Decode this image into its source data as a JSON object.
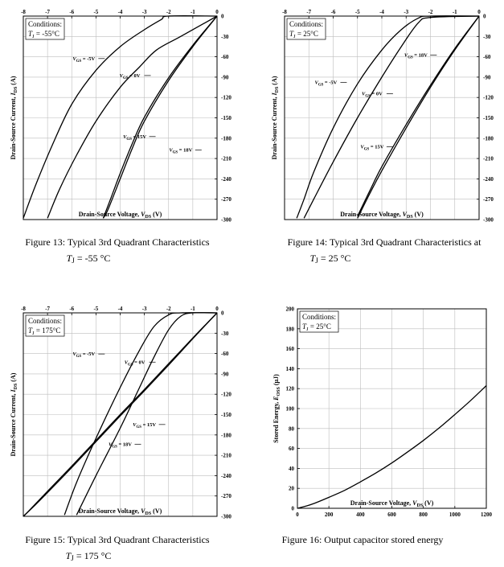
{
  "chart_data": [
    {
      "type": "line",
      "id": "fig13",
      "conditions_title": "Conditions:",
      "conditions_value": "Tj = -55°C",
      "xlabel": "Drain-Source Voltage, VDS (V)",
      "ylabel": "Drain-Source Current, IDS (A)",
      "xlim": [
        -8,
        0
      ],
      "ylim": [
        -300,
        0
      ],
      "x_ticks": [
        "-8",
        "-7",
        "-6",
        "-5",
        "-4",
        "-3",
        "-2",
        "-1",
        "0"
      ],
      "y_ticks": [
        "0",
        "-30",
        "-60",
        "-90",
        "-120",
        "-150",
        "-180",
        "-210",
        "-240",
        "-270",
        "-300"
      ],
      "caption_line1": "Figure 13: Typical 3rd Quadrant Characteristics",
      "caption_line2": "TJ = -55 °C",
      "series": [
        {
          "name": "VGS = -5V",
          "points": [
            [
              0,
              0
            ],
            [
              -2.0,
              0
            ],
            [
              -2.3,
              -5
            ],
            [
              -3.0,
              -20
            ],
            [
              -4.0,
              -45
            ],
            [
              -5.0,
              -80
            ],
            [
              -6.0,
              -130
            ],
            [
              -6.8,
              -190
            ],
            [
              -7.5,
              -250
            ],
            [
              -8.0,
              -298
            ]
          ]
        },
        {
          "name": "VGS = 0V",
          "points": [
            [
              0,
              0
            ],
            [
              -1.5,
              -30
            ],
            [
              -2.5,
              -50
            ],
            [
              -3.2,
              -75
            ],
            [
              -4.0,
              -105
            ],
            [
              -5.0,
              -155
            ],
            [
              -5.8,
              -205
            ],
            [
              -6.5,
              -255
            ],
            [
              -7.0,
              -298
            ]
          ]
        },
        {
          "name": "VGS = 15V",
          "points": [
            [
              0,
              0
            ],
            [
              -1.0,
              -45
            ],
            [
              -2.0,
              -95
            ],
            [
              -3.0,
              -155
            ],
            [
              -3.5,
              -195
            ],
            [
              -4.0,
              -240
            ],
            [
              -4.5,
              -285
            ],
            [
              -4.7,
              -298
            ]
          ]
        },
        {
          "name": "VGS = 18V",
          "points": [
            [
              0,
              0
            ],
            [
              -1.0,
              -43
            ],
            [
              -2.0,
              -91
            ],
            [
              -3.0,
              -149
            ],
            [
              -3.5,
              -188
            ],
            [
              -4.0,
              -232
            ],
            [
              -4.4,
              -270
            ],
            [
              -4.7,
              -298
            ]
          ]
        }
      ],
      "labels": [
        {
          "text": "VGS = -5V",
          "x": -5.5,
          "y": -65
        },
        {
          "text": "VGS = 0V",
          "x": -3.6,
          "y": -90
        },
        {
          "text": "VGS = 15V",
          "x": -3.4,
          "y": -180
        },
        {
          "text": "VGS = 18V",
          "x": -1.5,
          "y": -200
        }
      ]
    },
    {
      "type": "line",
      "id": "fig14",
      "conditions_title": "Conditions:",
      "conditions_value": "Tj = 25°C",
      "xlabel": "Drain-Source Voltage, VDS (V)",
      "ylabel": "Drain-Source Current, IDS (A)",
      "xlim": [
        -8,
        0
      ],
      "ylim": [
        -300,
        0
      ],
      "x_ticks": [
        "-8",
        "-7",
        "-6",
        "-5",
        "-4",
        "-3",
        "-2",
        "-1",
        "0"
      ],
      "y_ticks": [
        "0",
        "-30",
        "-60",
        "-90",
        "-120",
        "-150",
        "-180",
        "-210",
        "-240",
        "-270",
        "-300"
      ],
      "caption_line1": "Figure 14: Typical 3rd Quadrant Characteristics at",
      "caption_line2": "TJ = 25 °C",
      "series": [
        {
          "name": "VGS = -5V",
          "points": [
            [
              0,
              0
            ],
            [
              -2.0,
              0
            ],
            [
              -2.5,
              -3
            ],
            [
              -3.2,
              -20
            ],
            [
              -4.0,
              -50
            ],
            [
              -5.0,
              -100
            ],
            [
              -6.0,
              -165
            ],
            [
              -6.8,
              -230
            ],
            [
              -7.2,
              -270
            ],
            [
              -7.5,
              -298
            ]
          ]
        },
        {
          "name": "VGS = 0V",
          "points": [
            [
              0,
              0
            ],
            [
              -2.0,
              -2
            ],
            [
              -2.5,
              -10
            ],
            [
              -3.2,
              -45
            ],
            [
              -4.0,
              -90
            ],
            [
              -5.0,
              -150
            ],
            [
              -6.0,
              -215
            ],
            [
              -6.8,
              -270
            ],
            [
              -7.2,
              -298
            ]
          ]
        },
        {
          "name": "VGS = 15V",
          "points": [
            [
              0,
              0
            ],
            [
              -1.0,
              -50
            ],
            [
              -2.0,
              -105
            ],
            [
              -3.0,
              -165
            ],
            [
              -4.0,
              -228
            ],
            [
              -4.5,
              -262
            ],
            [
              -5.0,
              -298
            ]
          ]
        },
        {
          "name": "VGS = 18V",
          "points": [
            [
              0,
              0
            ],
            [
              -1.0,
              -48
            ],
            [
              -2.0,
              -102
            ],
            [
              -3.0,
              -160
            ],
            [
              -4.0,
              -222
            ],
            [
              -4.5,
              -258
            ],
            [
              -5.0,
              -295
            ]
          ]
        }
      ],
      "labels": [
        {
          "text": "VGS = 18V",
          "x": -2.6,
          "y": -60
        },
        {
          "text": "VGS = -5V",
          "x": -6.3,
          "y": -100
        },
        {
          "text": "VGS = 0V",
          "x": -4.4,
          "y": -117
        },
        {
          "text": "VGS = 15V",
          "x": -4.4,
          "y": -195
        }
      ]
    },
    {
      "type": "line",
      "id": "fig15",
      "conditions_title": "Conditions:",
      "conditions_value": "Tj = 175°C",
      "xlabel": "Drain-Source Voltage, VDS (V)",
      "ylabel": "Drain-Source Current, IDS (A)",
      "xlim": [
        -8,
        0
      ],
      "ylim": [
        -300,
        0
      ],
      "x_ticks": [
        "-8",
        "-7",
        "-6",
        "-5",
        "-4",
        "-3",
        "-2",
        "-1",
        "0"
      ],
      "y_ticks": [
        "0",
        "-30",
        "-60",
        "-90",
        "-120",
        "-150",
        "-180",
        "-210",
        "-240",
        "-270",
        "-300"
      ],
      "caption_line1": "Figure 15: Typical 3rd Quadrant Characteristics",
      "caption_line2": "TJ = 175 °C",
      "series": [
        {
          "name": "VGS = -5V",
          "points": [
            [
              0,
              0
            ],
            [
              -1.5,
              0
            ],
            [
              -2.0,
              -3
            ],
            [
              -2.6,
              -20
            ],
            [
              -3.2,
              -55
            ],
            [
              -4.0,
              -110
            ],
            [
              -5.0,
              -185
            ],
            [
              -5.8,
              -250
            ],
            [
              -6.3,
              -298
            ]
          ]
        },
        {
          "name": "VGS = 0V",
          "points": [
            [
              0,
              0
            ],
            [
              -1.0,
              0
            ],
            [
              -1.5,
              -5
            ],
            [
              -2.0,
              -25
            ],
            [
              -2.6,
              -65
            ],
            [
              -3.2,
              -110
            ],
            [
              -4.0,
              -170
            ],
            [
              -5.0,
              -240
            ],
            [
              -5.8,
              -298
            ]
          ]
        },
        {
          "name": "VGS = 15V",
          "points": [
            [
              0,
              0
            ],
            [
              -1.0,
              -38
            ],
            [
              -2.0,
              -77
            ],
            [
              -3.0,
              -115
            ],
            [
              -4.0,
              -152
            ],
            [
              -5.0,
              -190
            ],
            [
              -6.0,
              -228
            ],
            [
              -7.0,
              -265
            ],
            [
              -7.5,
              -283
            ],
            [
              -8.0,
              -300
            ]
          ]
        },
        {
          "name": "VGS = 18V",
          "points": [
            [
              0,
              0
            ],
            [
              -1.0,
              -37
            ],
            [
              -2.0,
              -75
            ],
            [
              -3.0,
              -113
            ],
            [
              -4.0,
              -150
            ],
            [
              -5.0,
              -188
            ],
            [
              -6.0,
              -226
            ],
            [
              -7.0,
              -263
            ],
            [
              -7.8,
              -293
            ],
            [
              -8.0,
              -300
            ]
          ]
        }
      ],
      "labels": [
        {
          "text": "VGS = -5V",
          "x": -5.5,
          "y": -63
        },
        {
          "text": "VGS = 0V",
          "x": -3.4,
          "y": -75
        },
        {
          "text": "VGS = 15V",
          "x": -3.0,
          "y": -167
        },
        {
          "text": "VGS = 18V",
          "x": -4.0,
          "y": -196
        }
      ]
    },
    {
      "type": "line",
      "id": "fig16",
      "conditions_title": "Conditions:",
      "conditions_value": "Tj = 25°C",
      "xlabel": "Drain-Source Voltage, VDS (V)",
      "ylabel": "Stored Energy, EOSS (µJ)",
      "xlim": [
        0,
        1200
      ],
      "ylim": [
        0,
        200
      ],
      "x_ticks": [
        "0",
        "200",
        "400",
        "600",
        "800",
        "1000",
        "1200"
      ],
      "y_ticks": [
        "0",
        "20",
        "40",
        "60",
        "80",
        "100",
        "120",
        "140",
        "160",
        "180",
        "200"
      ],
      "caption_line1": "Figure 16: Output capacitor stored energy",
      "caption_line2": "",
      "series": [
        {
          "name": "EOSS",
          "points": [
            [
              0,
              0
            ],
            [
              50,
              2
            ],
            [
              100,
              4.5
            ],
            [
              200,
              11
            ],
            [
              300,
              18
            ],
            [
              400,
              26.5
            ],
            [
              500,
              35.5
            ],
            [
              600,
              45.5
            ],
            [
              700,
              56.5
            ],
            [
              800,
              68
            ],
            [
              900,
              80.5
            ],
            [
              1000,
              94
            ],
            [
              1100,
              108
            ],
            [
              1200,
              123
            ]
          ]
        }
      ],
      "labels": []
    }
  ]
}
